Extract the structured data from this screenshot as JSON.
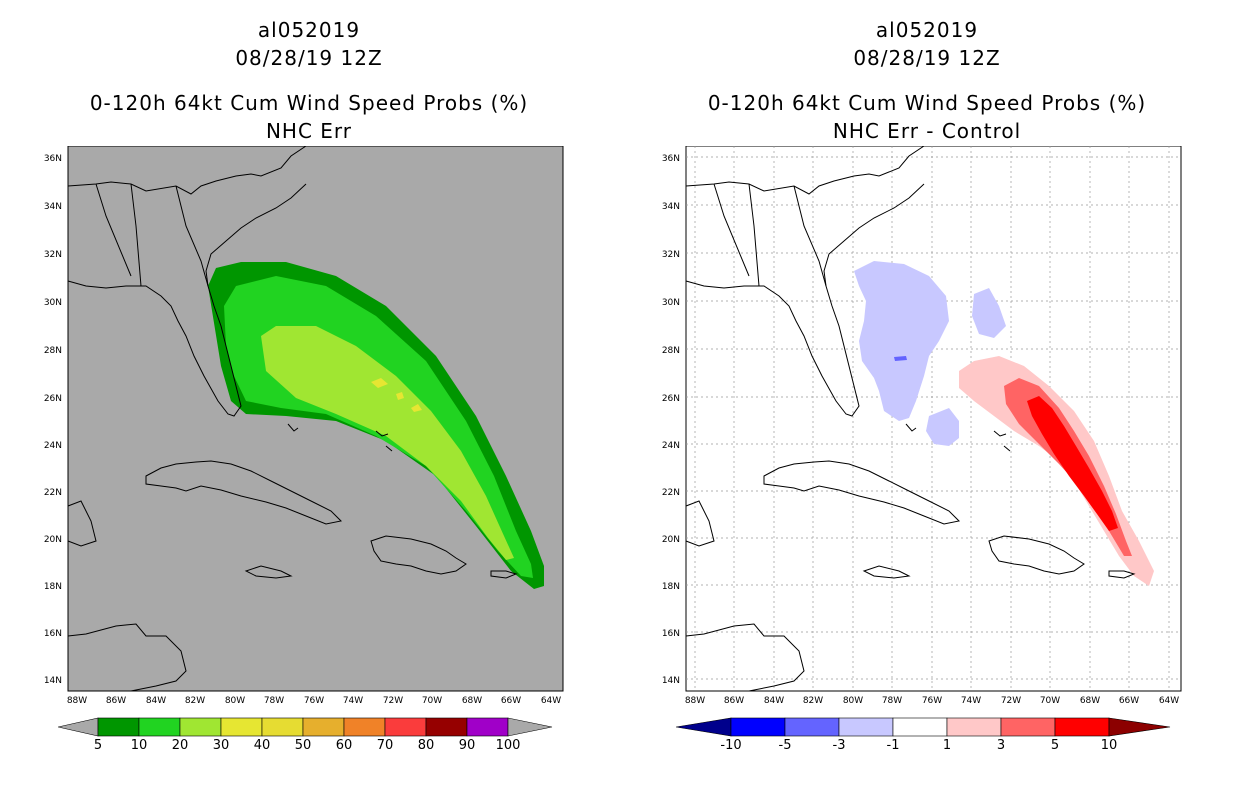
{
  "left_panel": {
    "storm_id": "al052019",
    "datetime": "08/28/19 12Z",
    "title": "0-120h 64kt Cum Wind Speed Probs (%)",
    "subtitle": "NHC Err",
    "background_color": "#a9a9a9",
    "colorbar": {
      "labels": [
        "5",
        "10",
        "20",
        "30",
        "40",
        "50",
        "60",
        "70",
        "80",
        "90",
        "100"
      ],
      "colors": [
        "#009600",
        "#21d321",
        "#a0e632",
        "#e6e632",
        "#e6dc32",
        "#e6af2d",
        "#f08228",
        "#fa3c3c",
        "#960000",
        "#a000c8"
      ]
    }
  },
  "right_panel": {
    "storm_id": "al052019",
    "datetime": "08/28/19 12Z",
    "title": "0-120h 64kt Cum Wind Speed Probs (%)",
    "subtitle": "NHC Err - Control",
    "background_color": "#ffffff",
    "colorbar": {
      "labels": [
        "-10",
        "-5",
        "-3",
        "-1",
        "1",
        "3",
        "5",
        "10"
      ],
      "colors": [
        "#00008c",
        "#0000ff",
        "#6464ff",
        "#c8c8ff",
        "#ffffff",
        "#ffc8c8",
        "#ff6464",
        "#ff0000",
        "#8c0000"
      ]
    }
  },
  "axes": {
    "lat_labels": [
      "36N",
      "34N",
      "32N",
      "30N",
      "28N",
      "26N",
      "24N",
      "22N",
      "20N",
      "18N",
      "16N",
      "14N"
    ],
    "lon_labels": [
      "88W",
      "86W",
      "84W",
      "82W",
      "80W",
      "78W",
      "76W",
      "74W",
      "72W",
      "70W",
      "68W",
      "66W",
      "64W"
    ]
  },
  "icons": {
    "coastline": "coastline-outline"
  }
}
